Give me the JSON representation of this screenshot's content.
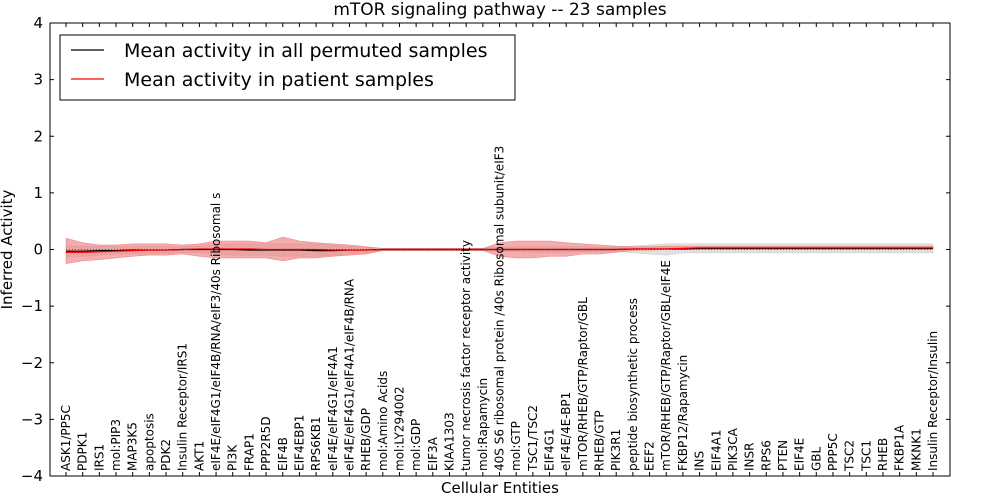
{
  "chart_data": {
    "type": "line",
    "title": "mTOR signaling pathway -- 23 samples",
    "xlabel": "Cellular Entities",
    "ylabel": "Inferred Activity",
    "ylim": [
      -4,
      4
    ],
    "yticks": [
      4,
      3,
      2,
      1,
      0,
      -1,
      -2,
      -3,
      -4
    ],
    "ytick_labels": [
      "4",
      "3",
      "2",
      "1",
      "0",
      "−1",
      "−2",
      "−3",
      "−4"
    ],
    "legend_position": "top-left",
    "categories": [
      "ASK1/PP5C",
      "PDPK1",
      "IRS1",
      "mol:PIP3",
      "MAP3K5",
      "apoptosis",
      "PDK2",
      "Insulin Receptor/IRS1",
      "AKT1",
      "eIF4E/eIF4G1/eIF4B/RNA/eIF3/40s Ribosomal s",
      "PI3K",
      "FRAP1",
      "PPP2R5D",
      "EIF4B",
      "EIF4EBP1",
      "RPS6KB1",
      "eIF4E/eIF4G1/eIF4A1",
      "eIF4E/eIF4G1/eIF4A1/eIF4B/RNA",
      "RHEB/GDP",
      "mol:Amino Acids",
      "mol:LY294002",
      "mol:GDP",
      "EIF3A",
      "KIAA1303",
      "tumor necrosis factor receptor activity",
      "mol:Rapamycin",
      "40S S6 ribosomal protein /40s Ribosomal subunit/eIF3",
      "mol:GTP",
      "TSC1/TSC2",
      "EIF4G1",
      "eIF4E/4E-BP1",
      "mTOR/RHEB/GTP/Raptor/GBL",
      "RHEB/GTP",
      "PIK3R1",
      "peptide biosynthetic process",
      "EEF2",
      "mTOR/RHEB/GTP/Raptor/GBL/eIF4E",
      "FKBP12/Rapamycin",
      "INS",
      "EIF4A1",
      "PIK3CA",
      "INSR",
      "RPS6",
      "PTEN",
      "EIF4E",
      "GBL",
      "PPP5C",
      "TSC2",
      "TSC1",
      "RHEB",
      "FKBP1A",
      "MKNK1",
      "Insulin Receptor/Insulin"
    ],
    "series": [
      {
        "name": "Mean activity in all permuted samples",
        "color": "#000000",
        "band_color": "#c8c8c8",
        "values": [
          -0.03,
          -0.03,
          -0.02,
          -0.02,
          -0.01,
          -0.01,
          -0.01,
          0.0,
          0.0,
          0.0,
          0.0,
          -0.01,
          -0.01,
          -0.01,
          -0.01,
          -0.02,
          -0.02,
          -0.01,
          -0.01,
          0.0,
          0.0,
          0.0,
          0.0,
          0.0,
          0.0,
          0.0,
          0.0,
          0.0,
          0.0,
          0.0,
          0.0,
          0.0,
          0.0,
          0.0,
          0.01,
          0.01,
          0.01,
          0.01,
          0.02,
          0.02,
          0.02,
          0.02,
          0.02,
          0.02,
          0.02,
          0.02,
          0.02,
          0.02,
          0.02,
          0.02,
          0.02,
          0.02,
          0.02
        ],
        "lower": [
          -0.12,
          -0.12,
          -0.1,
          -0.08,
          -0.08,
          -0.07,
          -0.07,
          -0.05,
          -0.06,
          -0.08,
          -0.1,
          -0.1,
          -0.1,
          -0.12,
          -0.12,
          -0.12,
          -0.1,
          -0.08,
          -0.06,
          -0.02,
          -0.02,
          -0.02,
          -0.02,
          -0.02,
          -0.02,
          -0.02,
          -0.03,
          -0.04,
          -0.05,
          -0.05,
          -0.05,
          -0.04,
          -0.04,
          -0.03,
          -0.06,
          -0.08,
          -0.1,
          -0.06,
          -0.06,
          -0.06,
          -0.06,
          -0.06,
          -0.06,
          -0.06,
          -0.06,
          -0.06,
          -0.06,
          -0.06,
          -0.06,
          -0.06,
          -0.06,
          -0.06,
          -0.06
        ],
        "upper": [
          0.06,
          0.06,
          0.06,
          0.05,
          0.05,
          0.05,
          0.05,
          0.05,
          0.06,
          0.08,
          0.1,
          0.1,
          0.1,
          0.1,
          0.1,
          0.1,
          0.08,
          0.06,
          0.04,
          0.02,
          0.02,
          0.02,
          0.02,
          0.02,
          0.02,
          0.02,
          0.04,
          0.05,
          0.05,
          0.05,
          0.05,
          0.05,
          0.04,
          0.04,
          0.06,
          0.08,
          0.1,
          0.1,
          0.1,
          0.1,
          0.1,
          0.1,
          0.1,
          0.1,
          0.1,
          0.1,
          0.1,
          0.1,
          0.1,
          0.1,
          0.1,
          0.1,
          0.1
        ]
      },
      {
        "name": "Mean activity in patient samples",
        "color": "#ff0000",
        "band_color": "#f08080",
        "values": [
          -0.05,
          -0.05,
          -0.04,
          -0.03,
          -0.02,
          -0.01,
          -0.01,
          0.0,
          0.01,
          0.01,
          0.01,
          0.01,
          0.0,
          0.0,
          0.0,
          0.0,
          -0.01,
          -0.01,
          -0.01,
          0.0,
          0.0,
          0.0,
          0.0,
          0.0,
          0.0,
          0.0,
          0.0,
          0.0,
          0.0,
          0.0,
          0.0,
          0.0,
          0.0,
          0.0,
          0.01,
          0.01,
          0.01,
          0.02,
          0.03,
          0.03,
          0.03,
          0.03,
          0.03,
          0.03,
          0.03,
          0.03,
          0.03,
          0.03,
          0.03,
          0.03,
          0.03,
          0.03,
          0.03
        ],
        "lower": [
          -0.25,
          -0.2,
          -0.18,
          -0.15,
          -0.12,
          -0.1,
          -0.1,
          -0.08,
          -0.12,
          -0.15,
          -0.15,
          -0.15,
          -0.15,
          -0.2,
          -0.15,
          -0.15,
          -0.12,
          -0.1,
          -0.08,
          -0.02,
          -0.02,
          -0.02,
          -0.02,
          -0.02,
          -0.02,
          -0.02,
          -0.12,
          -0.15,
          -0.15,
          -0.12,
          -0.12,
          -0.08,
          -0.08,
          -0.05,
          -0.02,
          -0.01,
          0.0,
          0.0,
          0.0,
          0.0,
          0.0,
          0.0,
          0.0,
          0.0,
          0.0,
          0.0,
          0.0,
          0.0,
          0.0,
          0.0,
          0.0,
          0.0,
          0.0
        ],
        "upper": [
          0.2,
          0.12,
          0.08,
          0.08,
          0.1,
          0.1,
          0.1,
          0.08,
          0.1,
          0.15,
          0.15,
          0.15,
          0.12,
          0.22,
          0.15,
          0.12,
          0.1,
          0.08,
          0.05,
          0.02,
          0.02,
          0.02,
          0.02,
          0.02,
          0.02,
          0.02,
          0.12,
          0.15,
          0.15,
          0.15,
          0.12,
          0.1,
          0.08,
          0.06,
          0.05,
          0.05,
          0.06,
          0.06,
          0.06,
          0.06,
          0.06,
          0.06,
          0.06,
          0.06,
          0.06,
          0.06,
          0.06,
          0.06,
          0.06,
          0.06,
          0.06,
          0.06,
          0.06
        ]
      }
    ]
  }
}
